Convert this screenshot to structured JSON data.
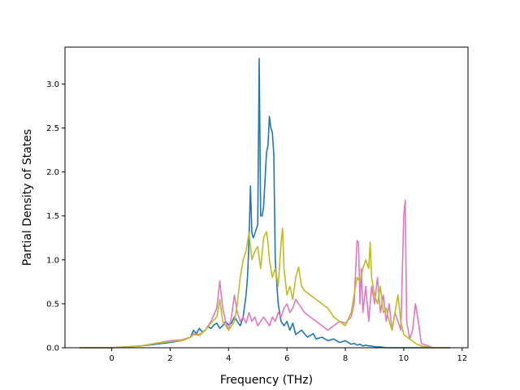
{
  "chart_data": {
    "type": "line",
    "title": "",
    "xlabel": "Frequency (THz)",
    "ylabel": "Partial Density of States",
    "xlim": [
      -1.6,
      12.2
    ],
    "ylim": [
      0.0,
      3.42
    ],
    "xticks": [
      0,
      2,
      4,
      6,
      8,
      10,
      12
    ],
    "xtick_labels": [
      "0",
      "2",
      "4",
      "6",
      "8",
      "10",
      "12"
    ],
    "yticks": [
      0.0,
      0.5,
      1.0,
      1.5,
      2.0,
      2.5,
      3.0
    ],
    "ytick_labels": [
      "0.0",
      "0.5",
      "1.0",
      "1.5",
      "2.0",
      "2.5",
      "3.0"
    ],
    "grid": false,
    "legend": "none",
    "series": [
      {
        "color": "#1f77b4",
        "x": [
          -1.1,
          0.0,
          0.5,
          1.0,
          1.5,
          2.0,
          2.4,
          2.7,
          2.8,
          2.9,
          3.0,
          3.1,
          3.2,
          3.3,
          3.4,
          3.5,
          3.6,
          3.7,
          3.8,
          3.9,
          4.0,
          4.1,
          4.2,
          4.3,
          4.4,
          4.5,
          4.6,
          4.65,
          4.7,
          4.75,
          4.8,
          4.85,
          4.9,
          5.0,
          5.05,
          5.1,
          5.15,
          5.2,
          5.3,
          5.35,
          5.4,
          5.45,
          5.5,
          5.55,
          5.6,
          5.7,
          5.8,
          5.9,
          6.0,
          6.1,
          6.2,
          6.3,
          6.5,
          6.7,
          6.9,
          7.0,
          7.2,
          7.4,
          7.6,
          7.8,
          8.0,
          8.2,
          8.3,
          8.4,
          8.5,
          8.6,
          8.7,
          8.8,
          8.9,
          9.0,
          9.2,
          9.4,
          9.6,
          9.8,
          10.0,
          10.2,
          10.4,
          10.6,
          11.0,
          11.6
        ],
        "values": [
          0.0,
          0.0,
          0.01,
          0.02,
          0.04,
          0.06,
          0.08,
          0.12,
          0.2,
          0.16,
          0.22,
          0.18,
          0.2,
          0.24,
          0.22,
          0.26,
          0.28,
          0.22,
          0.25,
          0.3,
          0.26,
          0.28,
          0.35,
          0.3,
          0.25,
          0.35,
          0.6,
          0.8,
          1.2,
          1.84,
          1.3,
          1.25,
          1.3,
          1.4,
          3.29,
          1.5,
          1.5,
          1.6,
          2.22,
          2.3,
          2.63,
          2.5,
          2.45,
          2.2,
          1.0,
          0.5,
          0.3,
          0.25,
          0.3,
          0.2,
          0.28,
          0.15,
          0.2,
          0.12,
          0.16,
          0.1,
          0.12,
          0.08,
          0.1,
          0.06,
          0.08,
          0.04,
          0.05,
          0.03,
          0.04,
          0.02,
          0.03,
          0.02,
          0.02,
          0.01,
          0.01,
          0.0,
          0.0,
          0.0,
          0.0,
          0.0,
          0.0,
          0.0,
          0.0,
          0.0
        ]
      },
      {
        "color": "#e377c2",
        "x": [
          -1.1,
          0.0,
          0.5,
          1.0,
          1.5,
          2.0,
          2.4,
          2.7,
          2.8,
          3.0,
          3.2,
          3.4,
          3.6,
          3.7,
          3.8,
          3.9,
          4.0,
          4.1,
          4.2,
          4.3,
          4.4,
          4.5,
          4.6,
          4.7,
          4.8,
          4.9,
          5.0,
          5.1,
          5.2,
          5.3,
          5.4,
          5.5,
          5.6,
          5.7,
          5.8,
          5.9,
          6.0,
          6.1,
          6.2,
          6.3,
          6.4,
          6.5,
          6.6,
          6.8,
          7.0,
          7.2,
          7.4,
          7.6,
          7.8,
          8.0,
          8.2,
          8.3,
          8.4,
          8.45,
          8.5,
          8.55,
          8.6,
          8.7,
          8.8,
          8.9,
          9.0,
          9.1,
          9.2,
          9.3,
          9.4,
          9.5,
          9.6,
          9.7,
          9.8,
          9.9,
          10.0,
          10.05,
          10.1,
          10.2,
          10.3,
          10.4,
          10.5,
          10.6,
          11.0,
          11.6
        ],
        "values": [
          0.0,
          0.0,
          0.01,
          0.02,
          0.05,
          0.08,
          0.09,
          0.12,
          0.16,
          0.15,
          0.2,
          0.3,
          0.45,
          0.76,
          0.45,
          0.3,
          0.2,
          0.35,
          0.6,
          0.4,
          0.3,
          0.35,
          0.28,
          0.4,
          0.3,
          0.35,
          0.25,
          0.3,
          0.35,
          0.3,
          0.25,
          0.35,
          0.3,
          0.4,
          0.35,
          0.45,
          0.5,
          0.4,
          0.45,
          0.55,
          0.5,
          0.45,
          0.4,
          0.35,
          0.3,
          0.25,
          0.2,
          0.25,
          0.3,
          0.28,
          0.35,
          0.5,
          1.22,
          1.2,
          0.5,
          0.9,
          0.4,
          0.7,
          0.3,
          0.7,
          0.5,
          0.8,
          0.4,
          0.6,
          0.3,
          0.5,
          0.2,
          0.4,
          0.3,
          0.2,
          1.5,
          1.68,
          0.3,
          0.1,
          0.2,
          0.5,
          0.3,
          0.05,
          0.0,
          0.0
        ]
      },
      {
        "color": "#bcbd22",
        "x": [
          -1.1,
          0.0,
          0.5,
          1.0,
          1.5,
          2.0,
          2.4,
          2.7,
          2.8,
          3.0,
          3.2,
          3.4,
          3.6,
          3.7,
          3.8,
          3.9,
          4.0,
          4.2,
          4.3,
          4.4,
          4.5,
          4.6,
          4.7,
          4.8,
          4.9,
          5.0,
          5.1,
          5.2,
          5.3,
          5.35,
          5.4,
          5.5,
          5.6,
          5.7,
          5.8,
          5.85,
          5.9,
          6.0,
          6.1,
          6.2,
          6.3,
          6.4,
          6.5,
          6.6,
          6.8,
          7.0,
          7.2,
          7.4,
          7.6,
          7.8,
          8.0,
          8.2,
          8.3,
          8.4,
          8.5,
          8.6,
          8.7,
          8.8,
          8.85,
          8.9,
          9.0,
          9.1,
          9.2,
          9.3,
          9.4,
          9.5,
          9.6,
          9.7,
          9.8,
          9.9,
          10.0,
          10.2,
          10.4,
          10.6,
          11.0,
          11.6
        ],
        "values": [
          0.0,
          0.0,
          0.01,
          0.02,
          0.05,
          0.07,
          0.08,
          0.12,
          0.15,
          0.14,
          0.2,
          0.28,
          0.35,
          0.55,
          0.3,
          0.25,
          0.2,
          0.3,
          0.5,
          0.8,
          1.0,
          1.1,
          1.31,
          1.0,
          1.1,
          1.15,
          0.9,
          1.25,
          1.32,
          1.2,
          1.0,
          0.8,
          0.9,
          0.7,
          1.2,
          1.36,
          0.9,
          0.6,
          0.7,
          0.55,
          0.8,
          0.92,
          0.7,
          0.65,
          0.6,
          0.55,
          0.5,
          0.45,
          0.35,
          0.3,
          0.25,
          0.4,
          0.6,
          0.8,
          0.75,
          0.9,
          1.0,
          0.9,
          1.2,
          0.8,
          0.6,
          0.5,
          0.7,
          0.4,
          0.45,
          0.3,
          0.2,
          0.4,
          0.6,
          0.3,
          0.15,
          0.1,
          0.05,
          0.02,
          0.0,
          0.0
        ]
      }
    ]
  }
}
